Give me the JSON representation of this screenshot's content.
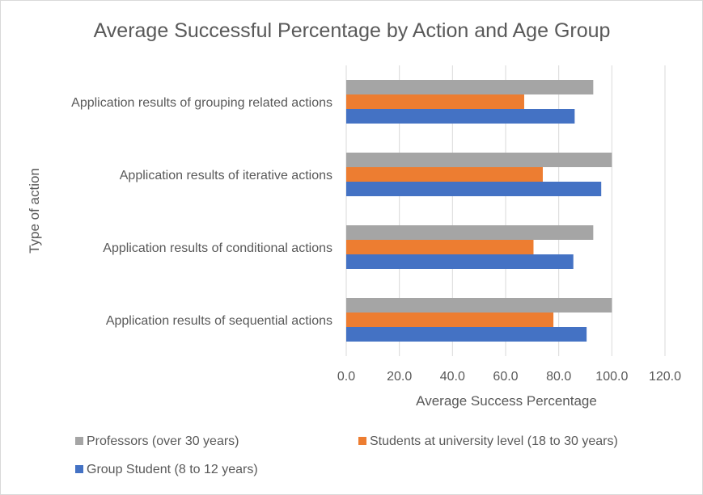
{
  "chart_data": {
    "type": "bar",
    "orientation": "horizontal",
    "title": "Average Successful  Percentage by Action and  Age Group",
    "xlabel": "Average Success Percentage",
    "ylabel": "Type of action",
    "xlim": [
      0,
      120
    ],
    "xticks": [
      "0.0",
      "20.0",
      "40.0",
      "60.0",
      "80.0",
      "100.0",
      "120.0"
    ],
    "grid": "vertical",
    "legend_position": "bottom",
    "categories": [
      "Application results of grouping related actions",
      "Application results of iterative actions",
      "Application results of conditional actions",
      "Application results of sequential actions"
    ],
    "series": [
      {
        "name": "Professors (over 30 years)",
        "color": "#a5a5a5",
        "values": [
          93,
          100,
          93,
          100
        ]
      },
      {
        "name": "Students at university level (18 to 30 years)",
        "color": "#ed7d31",
        "values": [
          67,
          74,
          70.5,
          78
        ]
      },
      {
        "name": "Group Student (8 to 12 years)",
        "color": "#4472c4",
        "values": [
          86,
          96,
          85.5,
          90.5
        ]
      }
    ]
  }
}
